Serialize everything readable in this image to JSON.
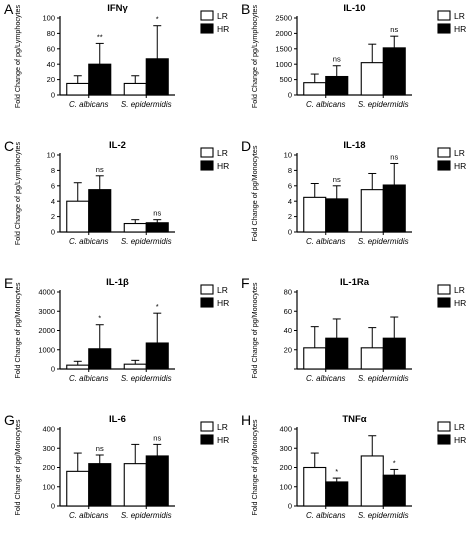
{
  "legend": {
    "low_label": "LR",
    "high_label": "HR",
    "low_color": "#ffffff",
    "high_color": "#000000"
  },
  "chart_data": [
    {
      "type": "bar",
      "letter": "A",
      "title": "IFNγ",
      "ylabel": "Fold Change of pg/Lymphocytes",
      "categories": [
        "C. albicans",
        "S. epidermidis"
      ],
      "ylim": [
        0,
        100
      ],
      "yticks": [
        0,
        20,
        40,
        60,
        80,
        100
      ],
      "series": [
        {
          "name": "LR",
          "values": [
            15,
            15
          ],
          "errors": [
            10,
            10
          ]
        },
        {
          "name": "HR",
          "values": [
            40,
            47
          ],
          "errors": [
            27,
            43
          ]
        }
      ],
      "significance": [
        "**",
        "*"
      ]
    },
    {
      "type": "bar",
      "letter": "B",
      "title": "IL-10",
      "ylabel": "Fold Change of pg/Lymphocytes",
      "categories": [
        "C. albicans",
        "S. epidermidis"
      ],
      "ylim": [
        0,
        2500
      ],
      "yticks": [
        0,
        500,
        1000,
        1500,
        2000,
        2500
      ],
      "series": [
        {
          "name": "LR",
          "values": [
            400,
            1050
          ],
          "errors": [
            280,
            600
          ]
        },
        {
          "name": "HR",
          "values": [
            600,
            1530
          ],
          "errors": [
            350,
            380
          ]
        }
      ],
      "significance": [
        "ns",
        "ns"
      ]
    },
    {
      "type": "bar",
      "letter": "C",
      "title": "IL-2",
      "ylabel": "Fold Change of pg/Lymphocytes",
      "categories": [
        "C. albicans",
        "S. epidermidis"
      ],
      "ylim": [
        0,
        10
      ],
      "yticks": [
        0,
        2,
        4,
        6,
        8,
        10
      ],
      "series": [
        {
          "name": "LR",
          "values": [
            4.0,
            1.1
          ],
          "errors": [
            2.4,
            0.5
          ]
        },
        {
          "name": "HR",
          "values": [
            5.5,
            1.2
          ],
          "errors": [
            1.8,
            0.4
          ]
        }
      ],
      "significance": [
        "ns",
        "ns"
      ]
    },
    {
      "type": "bar",
      "letter": "D",
      "title": "IL-18",
      "ylabel": "Fold Change of pg/Monocytes",
      "categories": [
        "C. albicans",
        "S. epidermidis"
      ],
      "ylim": [
        0,
        10
      ],
      "yticks": [
        0,
        2,
        4,
        6,
        8,
        10
      ],
      "series": [
        {
          "name": "LR",
          "values": [
            4.5,
            5.5
          ],
          "errors": [
            1.8,
            2.1
          ]
        },
        {
          "name": "HR",
          "values": [
            4.3,
            6.1
          ],
          "errors": [
            1.7,
            2.8
          ]
        }
      ],
      "significance": [
        "ns",
        "ns"
      ]
    },
    {
      "type": "bar",
      "letter": "E",
      "title": "IL-1β",
      "ylabel": "Fold Change of pg/Monocytes",
      "categories": [
        "C. albicans",
        "S. epidermidis"
      ],
      "ylim": [
        0,
        4000
      ],
      "yticks": [
        0,
        1000,
        2000,
        3000,
        4000
      ],
      "series": [
        {
          "name": "LR",
          "values": [
            200,
            250
          ],
          "errors": [
            200,
            200
          ]
        },
        {
          "name": "HR",
          "values": [
            1050,
            1350
          ],
          "errors": [
            1250,
            1550
          ]
        }
      ],
      "significance": [
        "*",
        "*"
      ]
    },
    {
      "type": "bar",
      "letter": "F",
      "title": "IL-1Ra",
      "ylabel": "Fold Change of pg/Monocytes",
      "categories": [
        "C. albicans",
        "S. epidermidis"
      ],
      "ylim": [
        0,
        80
      ],
      "yticks": [
        0,
        20,
        40,
        60,
        80
      ],
      "series": [
        {
          "name": "LR",
          "values": [
            22,
            22
          ],
          "errors": [
            22,
            21
          ]
        },
        {
          "name": "HR",
          "values": [
            32,
            32
          ],
          "errors": [
            20,
            22
          ]
        }
      ],
      "significance": [],
      "show_zero_label": false
    },
    {
      "type": "bar",
      "letter": "G",
      "title": "IL-6",
      "ylabel": "Fold Change of pg/Monocytes",
      "categories": [
        "C. albicans",
        "S. epidermidis"
      ],
      "ylim": [
        0,
        400
      ],
      "yticks": [
        0,
        100,
        200,
        300,
        400
      ],
      "series": [
        {
          "name": "LR",
          "values": [
            180,
            220
          ],
          "errors": [
            95,
            100
          ]
        },
        {
          "name": "HR",
          "values": [
            220,
            260
          ],
          "errors": [
            45,
            60
          ]
        }
      ],
      "significance": [
        "ns",
        "ns"
      ]
    },
    {
      "type": "bar",
      "letter": "H",
      "title": "TNFα",
      "ylabel": "Fold Change of pg/Monocytes",
      "categories": [
        "C. albicans",
        "S. epidermidis"
      ],
      "ylim": [
        0,
        400
      ],
      "yticks": [
        0,
        100,
        200,
        300,
        400
      ],
      "series": [
        {
          "name": "LR",
          "values": [
            200,
            260
          ],
          "errors": [
            75,
            105
          ]
        },
        {
          "name": "HR",
          "values": [
            125,
            160
          ],
          "errors": [
            20,
            30
          ]
        }
      ],
      "significance": [
        "*",
        "*"
      ]
    }
  ]
}
